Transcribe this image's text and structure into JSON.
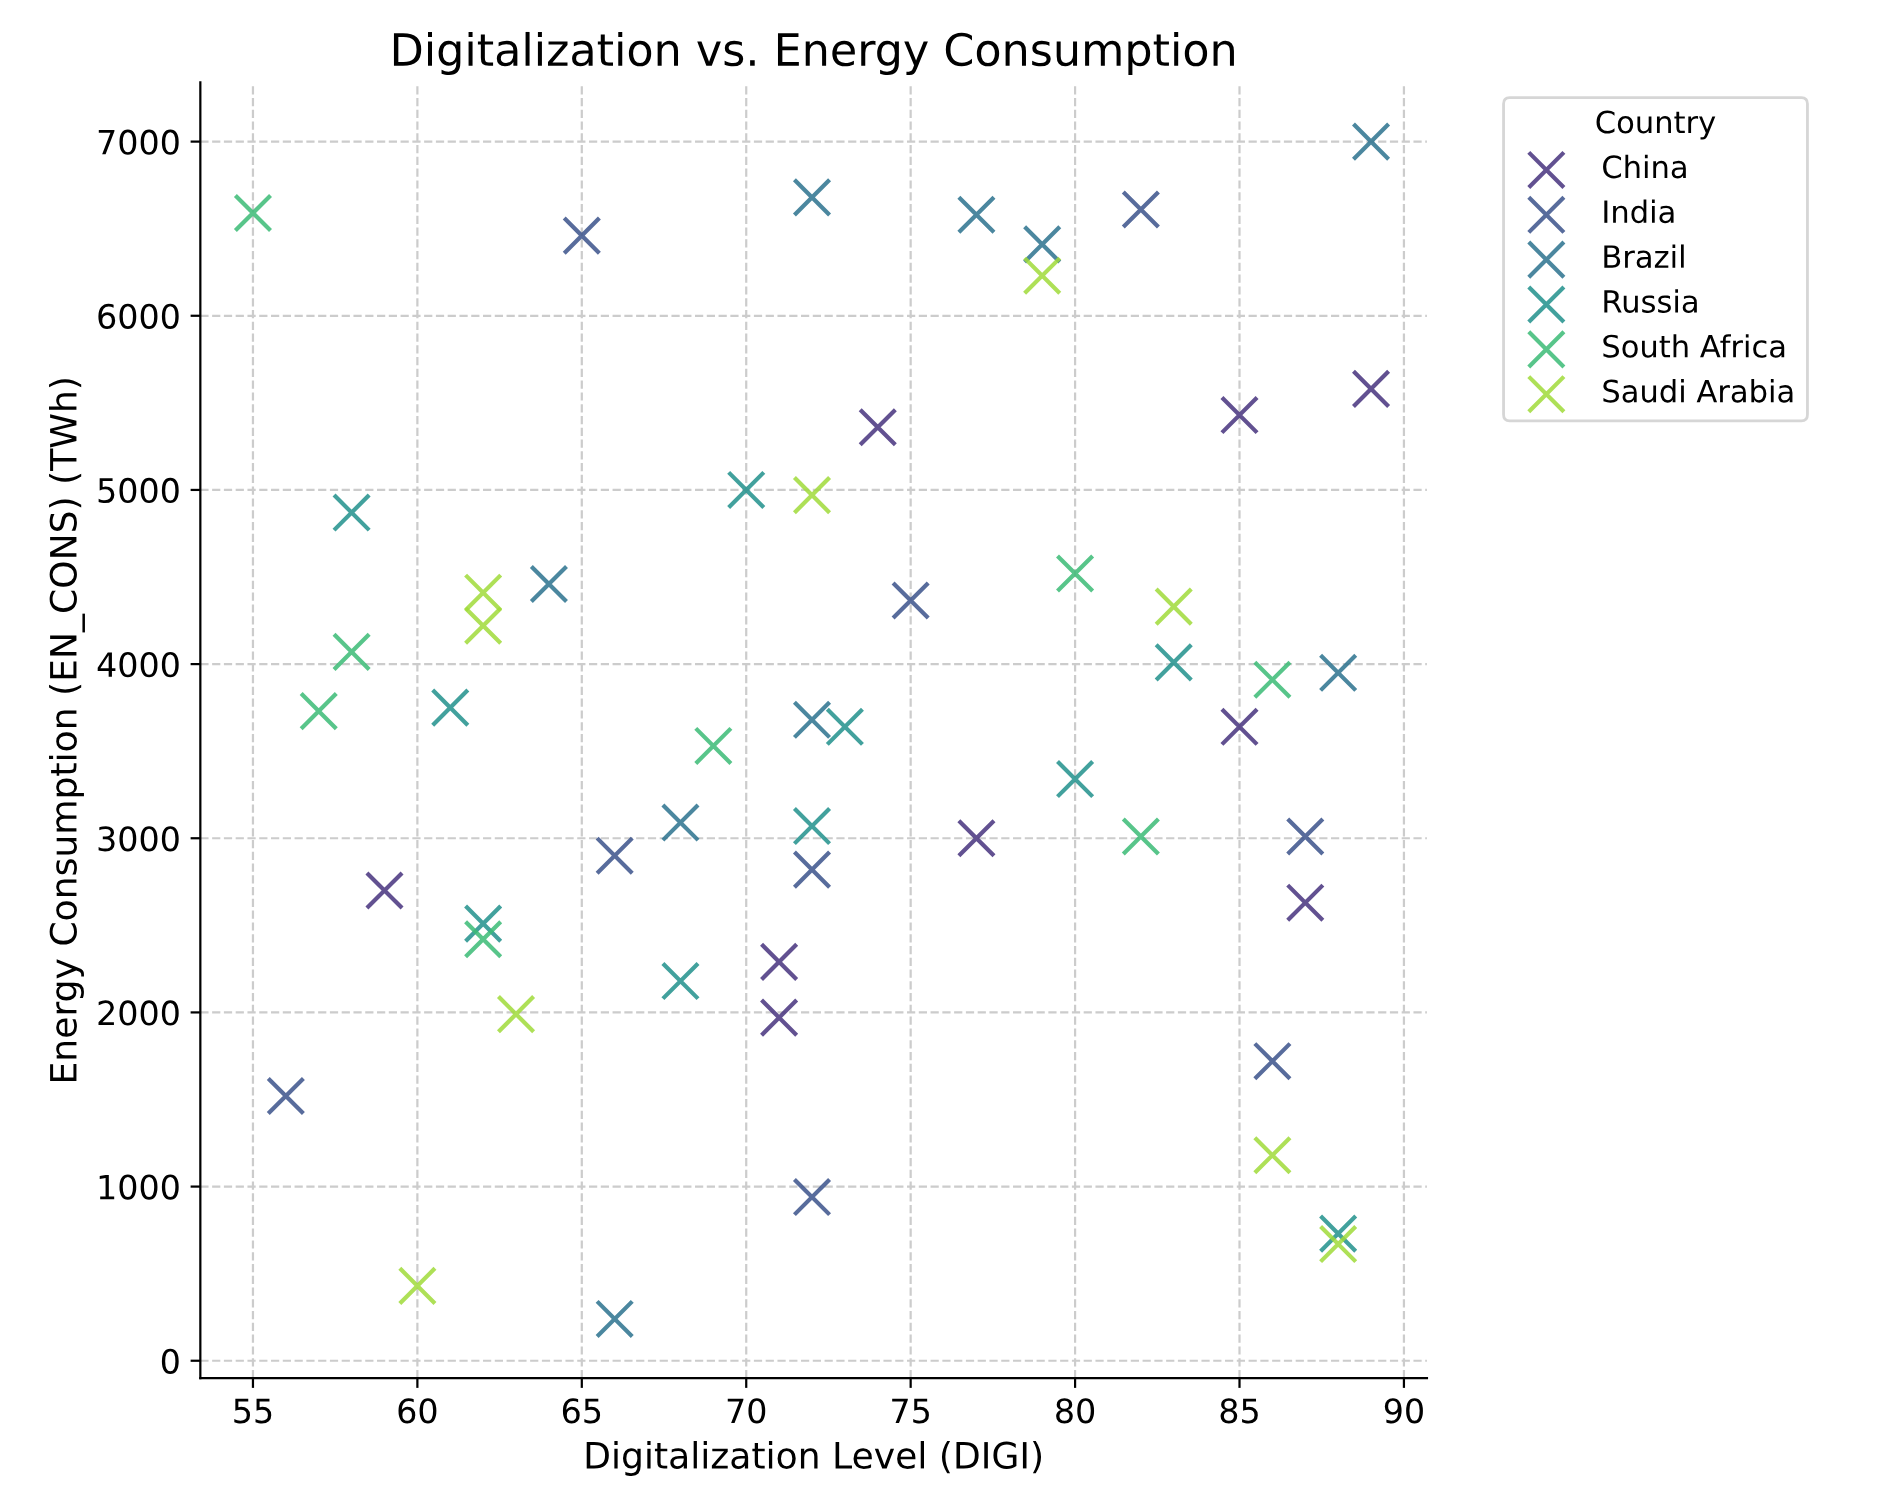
{
  "chart_data": {
    "type": "scatter",
    "title": "Digitalization vs. Energy Consumption",
    "xlabel": "Digitalization Level (DIGI)",
    "ylabel": "Energy Consumption (EN_CONS) (TWh)",
    "legend_title": "Country",
    "xlim": [
      53.4,
      90.7
    ],
    "ylim": [
      -100,
      7340
    ],
    "xticks": [
      55,
      60,
      65,
      70,
      75,
      80,
      85,
      90
    ],
    "yticks": [
      0,
      1000,
      2000,
      3000,
      4000,
      5000,
      6000,
      7000
    ],
    "grid": true,
    "legend": "top right",
    "marker": "cross",
    "series": [
      {
        "name": "China",
        "color": "#46327e",
        "x": [
          74,
          85,
          89,
          85,
          77,
          87,
          59,
          71,
          71
        ],
        "values": [
          5360,
          5430,
          5580,
          3640,
          3000,
          2630,
          2700,
          2290,
          1970
        ]
      },
      {
        "name": "India",
        "color": "#3b528b",
        "x": [
          65,
          82,
          75,
          66,
          72,
          56,
          72,
          87,
          86
        ],
        "values": [
          6460,
          6610,
          4365,
          2900,
          2820,
          1520,
          940,
          3010,
          1720
        ]
      },
      {
        "name": "Brazil",
        "color": "#2c728e",
        "x": [
          72,
          77,
          79,
          89,
          68,
          72,
          88,
          66,
          64
        ],
        "values": [
          6680,
          6580,
          6410,
          7000,
          3090,
          3680,
          3950,
          240,
          4460
        ]
      },
      {
        "name": "Russia",
        "color": "#21918c",
        "x": [
          61,
          58,
          70,
          72,
          62,
          68,
          83,
          73,
          80,
          88
        ],
        "values": [
          3750,
          4870,
          5000,
          3070,
          2510,
          2180,
          4010,
          3640,
          3340,
          730
        ]
      },
      {
        "name": "South Africa",
        "color": "#3bbb75",
        "x": [
          58,
          57,
          55,
          69,
          62,
          80,
          86,
          82
        ],
        "values": [
          4070,
          3730,
          6590,
          3530,
          2420,
          4520,
          3910,
          3010
        ]
      },
      {
        "name": "Saudi Arabia",
        "color": "#a0da39",
        "x": [
          72,
          62,
          62,
          63,
          60,
          79,
          83,
          86,
          88
        ],
        "values": [
          4970,
          4410,
          4220,
          1990,
          430,
          6230,
          4330,
          1180,
          670
        ]
      }
    ]
  }
}
